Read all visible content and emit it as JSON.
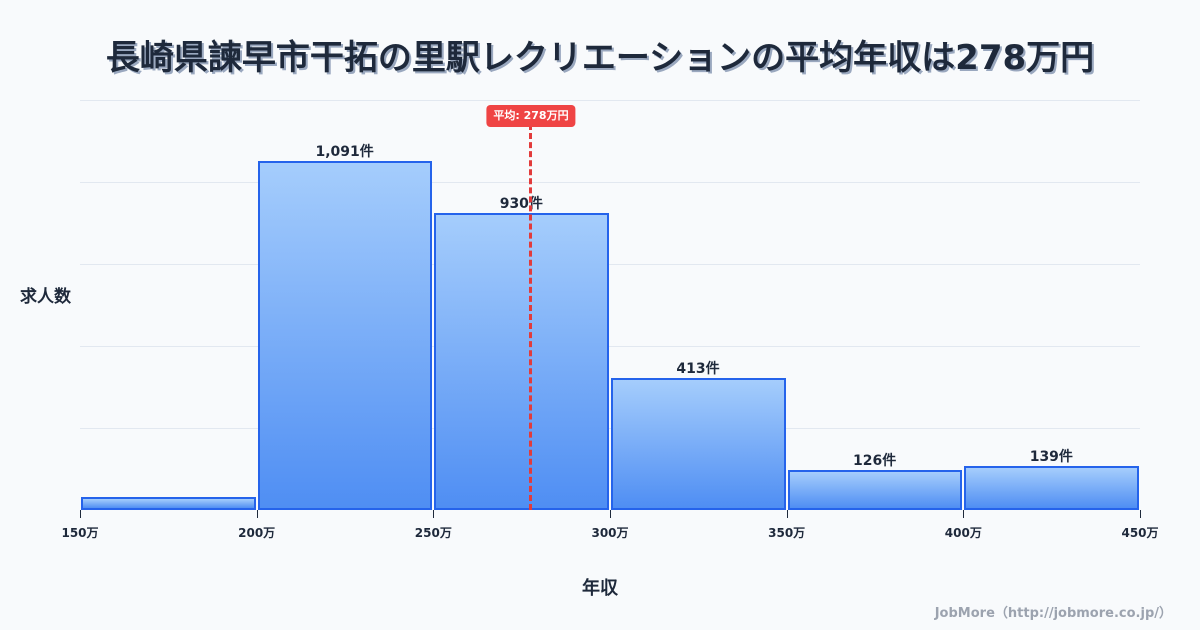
{
  "title": "長崎県諫早市干拓の里駅レクリエーションの平均年収は278万円",
  "y_axis_label": "求人数",
  "x_axis_label": "年収",
  "mean_badge": "平均: 278万円",
  "footer": "JobMore（http://jobmore.co.jp/）",
  "colors": {
    "bar_border": "#2563eb",
    "bar_top": "#a5cdfc",
    "bar_bottom": "#4f8ef3",
    "mean_line": "#ef4444",
    "text": "#1e293b",
    "background": "#f8fafc"
  },
  "x_ticks": [
    "150万",
    "200万",
    "250万",
    "300万",
    "350万",
    "400万",
    "450万"
  ],
  "bars": [
    {
      "range": "150万-200万",
      "count": 40,
      "label": ""
    },
    {
      "range": "200万-250万",
      "count": 1091,
      "label": "1,091件"
    },
    {
      "range": "250万-300万",
      "count": 930,
      "label": "930件"
    },
    {
      "range": "300万-350万",
      "count": 413,
      "label": "413件"
    },
    {
      "range": "350万-400万",
      "count": 126,
      "label": "126件"
    },
    {
      "range": "400万-450万",
      "count": 139,
      "label": "139件"
    }
  ],
  "chart_data": {
    "type": "bar",
    "title": "長崎県諫早市干拓の里駅レクリエーションの平均年収は278万円",
    "xlabel": "年収",
    "ylabel": "求人数",
    "categories": [
      "150万-200万",
      "200万-250万",
      "250万-300万",
      "300万-350万",
      "350万-400万",
      "400万-450万"
    ],
    "values": [
      40,
      1091,
      930,
      413,
      126,
      139
    ],
    "data_labels": [
      "",
      "1,091件",
      "930件",
      "413件",
      "126件",
      "139件"
    ],
    "x_tick_labels": [
      "150万",
      "200万",
      "250万",
      "300万",
      "350万",
      "400万",
      "450万"
    ],
    "xlim": [
      150,
      450
    ],
    "ylim": [
      0,
      1282
    ],
    "grid": true,
    "annotations": [
      {
        "type": "vline",
        "x": 278,
        "label": "平均: 278万円",
        "style": "dashed",
        "color": "#ef4444"
      }
    ],
    "legend": "none"
  }
}
